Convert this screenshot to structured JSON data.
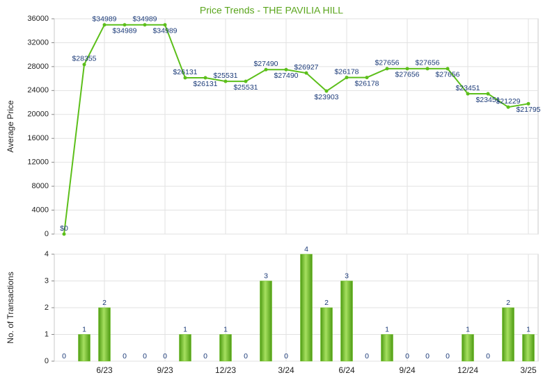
{
  "chart_data": [
    {
      "type": "line",
      "title": "Price Trends - THE PAVILIA HILL",
      "y_label": "Average Price",
      "series": [
        {
          "name": "Average Price",
          "color": "#5cbf1a",
          "values": [
            0,
            28355,
            34989,
            34989,
            34989,
            34989,
            26131,
            26131,
            25531,
            25531,
            27490,
            27490,
            26927,
            23903,
            26178,
            26178,
            27656,
            27656,
            27656,
            27656,
            23451,
            23451,
            21229,
            21795
          ],
          "value_labels": [
            "$0",
            "$28355",
            "$34989",
            "$34989",
            "$34989",
            "$34989",
            "$26131",
            "$26131",
            "$25531",
            "$25531",
            "$27490",
            "$27490",
            "$26927",
            "$23903",
            "$26178",
            "$26178",
            "$27656",
            "$27656",
            "$27656",
            "$27656",
            "$23451",
            "$23451",
            "$21229",
            "$21795"
          ]
        }
      ],
      "ylim": [
        0,
        36000
      ],
      "yticks": [
        0,
        4000,
        8000,
        12000,
        16000,
        20000,
        24000,
        28000,
        32000,
        36000
      ],
      "grid": true
    },
    {
      "type": "bar",
      "y_label": "No. of Transactions",
      "categories": [
        null,
        null,
        "6/23",
        null,
        null,
        "9/23",
        null,
        null,
        "12/23",
        null,
        null,
        "3/24",
        null,
        null,
        "6/24",
        null,
        null,
        "9/24",
        null,
        null,
        "12/24",
        null,
        null,
        "3/25"
      ],
      "series": [
        {
          "name": "No. of Transactions",
          "color": "#6cc21e",
          "values": [
            0,
            1,
            2,
            0,
            0,
            0,
            1,
            0,
            1,
            0,
            3,
            0,
            4,
            2,
            3,
            0,
            1,
            0,
            0,
            0,
            1,
            0,
            2,
            1
          ]
        }
      ],
      "ylim": [
        0,
        4
      ],
      "yticks": [
        0,
        1,
        2,
        3,
        4
      ],
      "grid": true
    }
  ]
}
